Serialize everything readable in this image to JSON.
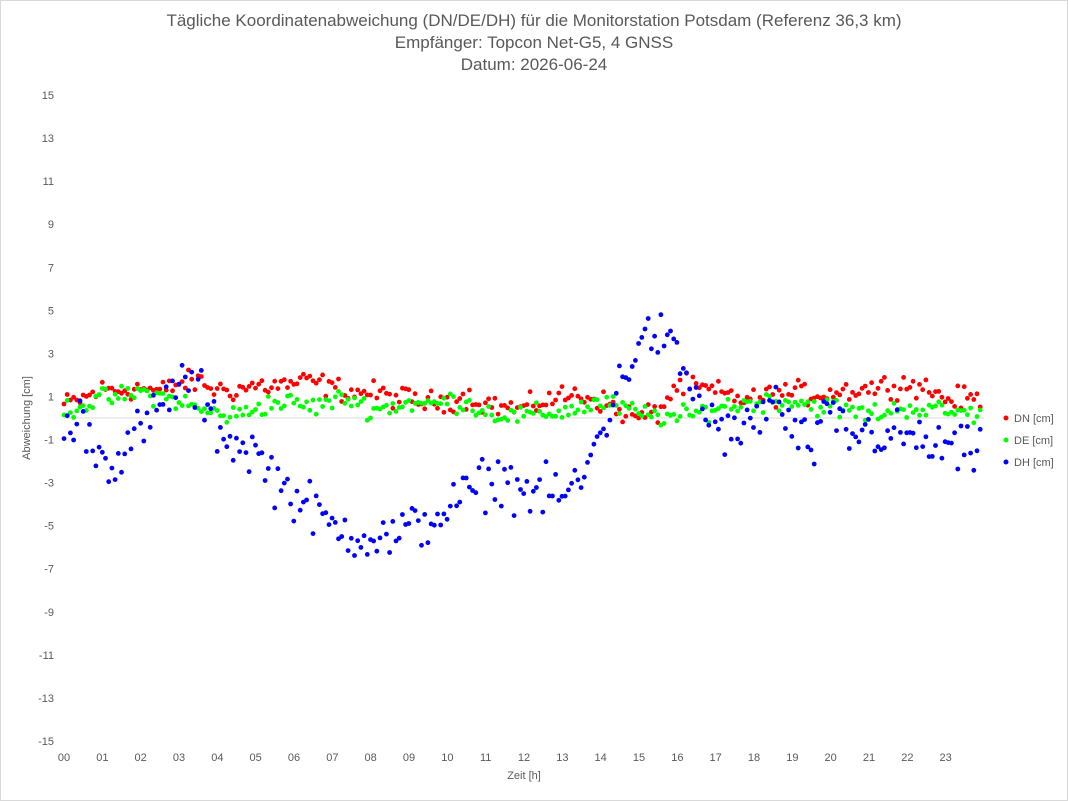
{
  "title_lines": [
    "Tägliche Koordinatenabweichung (DN/DE/DH) für die Monitorstation Potsdam (Referenz 36,3 km)",
    "Empfänger: Topcon Net-G5, 4 GNSS",
    "Datum: 2026-06-24"
  ],
  "chart_data": {
    "type": "scatter",
    "title": "Tägliche Koordinatenabweichung (DN/DE/DH) für die Monitorstation Potsdam (Referenz 36,3 km)",
    "subtitle": "Empfänger: Topcon Net-G5, 4 GNSS / Datum: 2026-06-24",
    "xlabel": "Zeit [h]",
    "ylabel": "Abweichung [cm]",
    "xlim": [
      0,
      24
    ],
    "ylim": [
      -15,
      15
    ],
    "x_ticks": [
      "00",
      "01",
      "02",
      "03",
      "04",
      "05",
      "06",
      "07",
      "08",
      "09",
      "10",
      "11",
      "12",
      "13",
      "14",
      "15",
      "16",
      "17",
      "18",
      "19",
      "20",
      "21",
      "22",
      "23"
    ],
    "y_ticks": [
      15,
      13,
      11,
      9,
      7,
      5,
      3,
      1,
      -1,
      -3,
      -5,
      -7,
      -9,
      -11,
      -13,
      -15
    ],
    "grid": false,
    "legend_position": "right",
    "series": [
      {
        "name": "DN [cm]",
        "color": "#ff0000",
        "anchors": [
          [
            0,
            0.6
          ],
          [
            0.5,
            0.9
          ],
          [
            1,
            1.3
          ],
          [
            1.5,
            1.3
          ],
          [
            2,
            1.4
          ],
          [
            2.5,
            1.2
          ],
          [
            3,
            1.6
          ],
          [
            3.5,
            1.7
          ],
          [
            4,
            1.3
          ],
          [
            4.5,
            1.3
          ],
          [
            5,
            1.5
          ],
          [
            5.5,
            1.5
          ],
          [
            6,
            1.6
          ],
          [
            6.5,
            1.7
          ],
          [
            7,
            1.4
          ],
          [
            7.5,
            1.2
          ],
          [
            8,
            1.2
          ],
          [
            8.5,
            1.0
          ],
          [
            9,
            0.9
          ],
          [
            9.5,
            0.7
          ],
          [
            10,
            0.8
          ],
          [
            10.5,
            1.0
          ],
          [
            11,
            0.7
          ],
          [
            11.5,
            0.5
          ],
          [
            12,
            0.4
          ],
          [
            12.5,
            0.8
          ],
          [
            13,
            1.0
          ],
          [
            13.5,
            1.1
          ],
          [
            14,
            0.8
          ],
          [
            14.5,
            0.3
          ],
          [
            15,
            0.0
          ],
          [
            15.5,
            0.3
          ],
          [
            16,
            1.5
          ],
          [
            16.5,
            1.4
          ],
          [
            17,
            1.2
          ],
          [
            17.5,
            1.0
          ],
          [
            18,
            0.8
          ],
          [
            18.5,
            1.1
          ],
          [
            19,
            1.2
          ],
          [
            19.5,
            1.1
          ],
          [
            20,
            1.2
          ],
          [
            20.5,
            1.3
          ],
          [
            21,
            1.4
          ],
          [
            21.5,
            1.5
          ],
          [
            22,
            1.6
          ],
          [
            22.5,
            1.4
          ],
          [
            23,
            0.9
          ],
          [
            23.8,
            0.9
          ]
        ]
      },
      {
        "name": "DE [cm]",
        "color": "#00ff00",
        "anchors": [
          [
            0,
            0.4
          ],
          [
            0.5,
            0.6
          ],
          [
            1,
            0.9
          ],
          [
            1.5,
            1.0
          ],
          [
            2,
            1.2
          ],
          [
            2.5,
            1.0
          ],
          [
            3,
            0.8
          ],
          [
            3.5,
            0.4
          ],
          [
            4,
            0.2
          ],
          [
            4.5,
            0.1
          ],
          [
            5,
            0.5
          ],
          [
            5.5,
            0.7
          ],
          [
            6,
            0.7
          ],
          [
            6.5,
            0.5
          ],
          [
            7,
            0.8
          ],
          [
            7.5,
            0.9
          ],
          [
            8,
            0.4
          ],
          [
            8.5,
            0.5
          ],
          [
            9,
            0.7
          ],
          [
            9.5,
            0.6
          ],
          [
            10,
            0.8
          ],
          [
            10.5,
            0.7
          ],
          [
            11,
            0.3
          ],
          [
            11.5,
            0.1
          ],
          [
            12,
            0.1
          ],
          [
            12.5,
            0.2
          ],
          [
            13,
            0.3
          ],
          [
            13.5,
            0.5
          ],
          [
            14,
            0.7
          ],
          [
            14.5,
            0.5
          ],
          [
            15,
            0.2
          ],
          [
            15.5,
            0.1
          ],
          [
            16,
            0.0
          ],
          [
            16.5,
            0.2
          ],
          [
            17,
            0.5
          ],
          [
            17.5,
            0.6
          ],
          [
            18,
            0.7
          ],
          [
            18.5,
            0.8
          ],
          [
            19,
            0.8
          ],
          [
            19.5,
            0.6
          ],
          [
            20,
            0.5
          ],
          [
            20.5,
            0.3
          ],
          [
            21,
            0.2
          ],
          [
            21.5,
            0.3
          ],
          [
            22,
            0.5
          ],
          [
            22.5,
            0.4
          ],
          [
            23,
            0.3
          ],
          [
            23.8,
            0.2
          ]
        ]
      },
      {
        "name": "DH [cm]",
        "color": "#0000ff",
        "anchors": [
          [
            0,
            -0.8
          ],
          [
            0.5,
            0.0
          ],
          [
            1,
            -2.0
          ],
          [
            1.5,
            -1.7
          ],
          [
            2,
            -0.6
          ],
          [
            2.5,
            0.3
          ],
          [
            3,
            1.8
          ],
          [
            3.5,
            1.2
          ],
          [
            4,
            -0.5
          ],
          [
            4.5,
            -1.2
          ],
          [
            5,
            -1.6
          ],
          [
            5.5,
            -2.8
          ],
          [
            6,
            -3.6
          ],
          [
            6.5,
            -4.3
          ],
          [
            7,
            -5.1
          ],
          [
            7.5,
            -5.3
          ],
          [
            8,
            -5.5
          ],
          [
            8.5,
            -5.6
          ],
          [
            9,
            -5.2
          ],
          [
            9.5,
            -4.8
          ],
          [
            10,
            -4.2
          ],
          [
            10.5,
            -3.6
          ],
          [
            11,
            -3.0
          ],
          [
            11.5,
            -2.8
          ],
          [
            12,
            -3.4
          ],
          [
            12.5,
            -3.5
          ],
          [
            13,
            -3.6
          ],
          [
            13.5,
            -3.0
          ],
          [
            14,
            -0.6
          ],
          [
            14.5,
            1.5
          ],
          [
            15,
            3.6
          ],
          [
            15.5,
            3.9
          ],
          [
            16,
            2.8
          ],
          [
            16.5,
            0.9
          ],
          [
            17,
            -0.3
          ],
          [
            17.5,
            -1.0
          ],
          [
            18,
            -0.2
          ],
          [
            18.5,
            0.9
          ],
          [
            19,
            -0.6
          ],
          [
            19.5,
            -1.5
          ],
          [
            20,
            0.2
          ],
          [
            20.5,
            -0.9
          ],
          [
            21,
            -0.6
          ],
          [
            21.5,
            -0.9
          ],
          [
            22,
            -0.8
          ],
          [
            22.5,
            -1.3
          ],
          [
            23,
            -1.4
          ],
          [
            23.8,
            -1.8
          ]
        ]
      }
    ]
  }
}
